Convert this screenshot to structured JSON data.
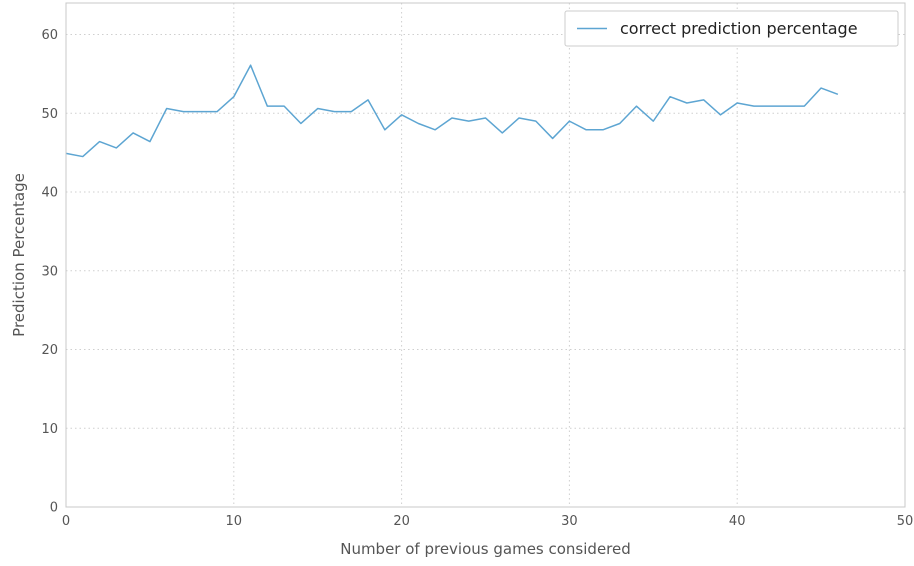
{
  "chart_data": {
    "type": "line",
    "title": "",
    "xlabel": "Number of previous games considered",
    "ylabel": "Prediction Percentage",
    "xlim": [
      0,
      50
    ],
    "ylim": [
      0,
      64
    ],
    "x_ticks": [
      0,
      10,
      20,
      30,
      40,
      50
    ],
    "y_ticks": [
      0,
      10,
      20,
      30,
      40,
      50,
      60
    ],
    "x_tick_labels": [
      "0",
      "10",
      "20",
      "30",
      "40",
      "50"
    ],
    "y_tick_labels": [
      "0",
      "10",
      "20",
      "30",
      "40",
      "50",
      "60"
    ],
    "grid": true,
    "grid_style": "dotted",
    "legend_position": "top-right",
    "series": [
      {
        "name": "correct prediction percentage",
        "color": "#5DA5D2",
        "x": [
          0,
          1,
          2,
          3,
          4,
          5,
          6,
          7,
          8,
          9,
          10,
          11,
          12,
          13,
          14,
          15,
          16,
          17,
          18,
          19,
          20,
          21,
          22,
          23,
          24,
          25,
          26,
          27,
          28,
          29,
          30,
          31,
          32,
          33,
          34,
          35,
          36,
          37,
          38,
          39,
          40,
          41,
          42,
          43,
          44,
          45,
          46
        ],
        "y": [
          44.9,
          44.5,
          46.4,
          45.6,
          47.5,
          46.4,
          50.6,
          50.2,
          50.2,
          50.2,
          52.1,
          56.1,
          50.9,
          50.9,
          48.7,
          50.6,
          50.2,
          50.2,
          51.7,
          47.9,
          49.8,
          48.7,
          47.9,
          49.4,
          49.0,
          49.4,
          47.5,
          49.4,
          49.0,
          46.8,
          49.0,
          47.9,
          47.9,
          48.7,
          50.9,
          49.0,
          52.1,
          51.3,
          51.7,
          49.8,
          51.3,
          50.9,
          50.9,
          50.9,
          50.9,
          53.2,
          52.4
        ]
      }
    ]
  }
}
